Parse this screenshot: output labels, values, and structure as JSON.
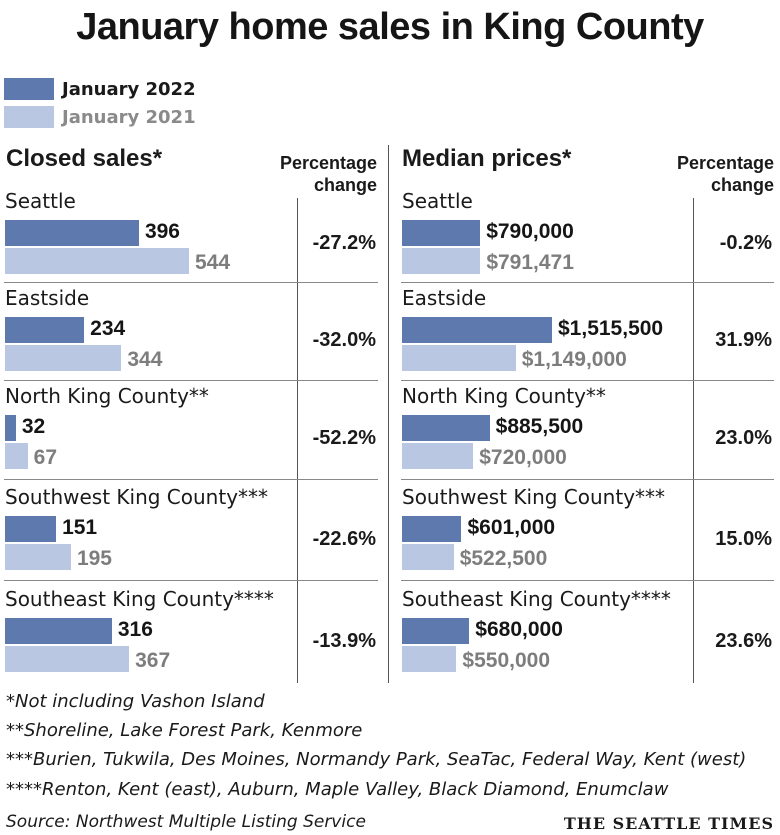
{
  "title": "January home sales in King County",
  "colors": {
    "y2022": "#5e79ad",
    "y2021": "#b9c7e2",
    "text2021": "#7d7d7d"
  },
  "legend": [
    {
      "label": "January 2022",
      "color": "#5e79ad",
      "text_color": "#1a1a1a"
    },
    {
      "label": "January 2021",
      "color": "#b9c7e2",
      "text_color": "#8a8a8a"
    }
  ],
  "panels": {
    "left": {
      "header": "Closed sales*",
      "pct_header": "Percentage change"
    },
    "right": {
      "header": "Median prices*",
      "pct_header": "Percentage change"
    }
  },
  "chart_data": [
    {
      "type": "bar",
      "title": "Closed sales*",
      "categories": [
        "Seattle",
        "Eastside",
        "North King County**",
        "Southwest King County***",
        "Southeast King County****"
      ],
      "series": [
        {
          "name": "January 2022",
          "values": [
            396,
            234,
            32,
            151,
            316
          ],
          "labels": [
            "396",
            "234",
            "32",
            "151",
            "316"
          ]
        },
        {
          "name": "January 2021",
          "values": [
            544,
            344,
            67,
            195,
            367
          ],
          "labels": [
            "544",
            "344",
            "67",
            "195",
            "367"
          ]
        }
      ],
      "pct_change": [
        "-27.2%",
        "-32.0%",
        "-52.2%",
        "-22.6%",
        "-13.9%"
      ],
      "orientation": "horizontal",
      "xlim": [
        0,
        544
      ]
    },
    {
      "type": "bar",
      "title": "Median prices*",
      "categories": [
        "Seattle",
        "Eastside",
        "North King County**",
        "Southwest King County***",
        "Southeast King County****"
      ],
      "series": [
        {
          "name": "January 2022",
          "values": [
            790000,
            1515500,
            885500,
            601000,
            680000
          ],
          "labels": [
            "$790,000",
            "$1,515,500",
            "$885,500",
            "$601,000",
            "$680,000"
          ]
        },
        {
          "name": "January 2021",
          "values": [
            791471,
            1149000,
            720000,
            522500,
            550000
          ],
          "labels": [
            "$791,471",
            "$1,149,000",
            "$720,000",
            "$522,500",
            "$550,000"
          ]
        }
      ],
      "pct_change": [
        "-0.2%",
        "31.9%",
        "23.0%",
        "15.0%",
        "23.6%"
      ],
      "orientation": "horizontal",
      "xlim": [
        0,
        1515500
      ]
    }
  ],
  "footnotes": [
    "*Not including Vashon Island",
    "**Shoreline, Lake Forest Park, Kenmore",
    "***Burien, Tukwila, Des Moines, Normandy Park, SeaTac, Federal Way, Kent (west)",
    "****Renton, Kent (east), Auburn, Maple Valley, Black Diamond, Enumclaw"
  ],
  "source": "Source: Northwest Multiple Listing Service",
  "brand": "THE SEATTLE TIMES"
}
